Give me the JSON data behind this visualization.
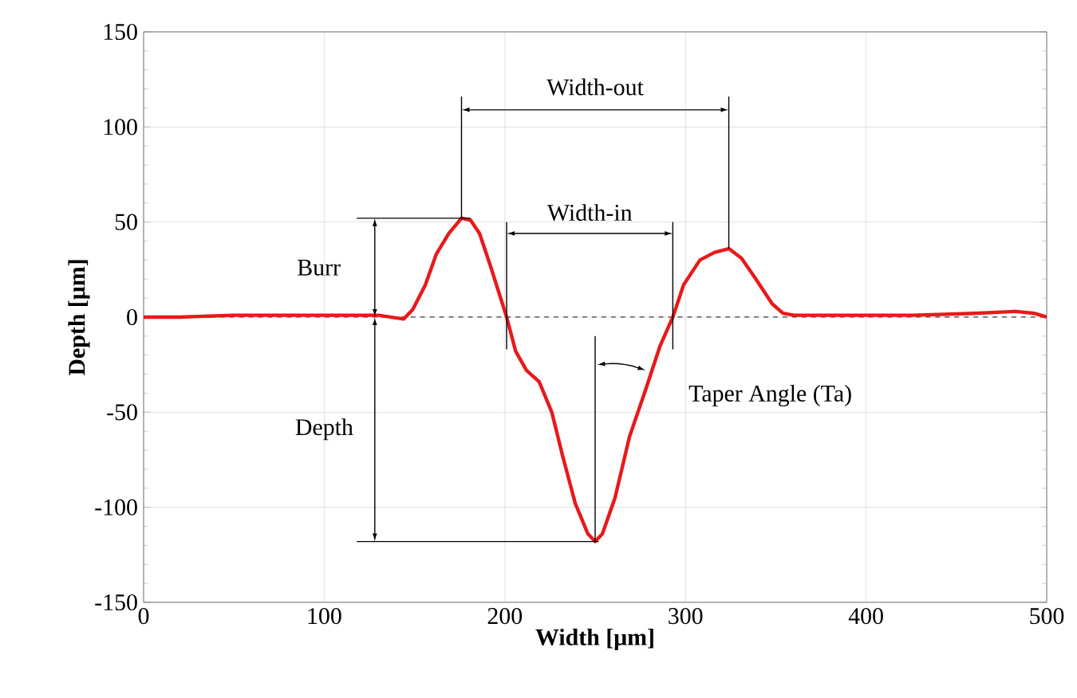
{
  "chart_data": {
    "type": "line",
    "xlabel": "Width [μm]",
    "ylabel": "Depth [μm]",
    "xlim": [
      0,
      500
    ],
    "xticks": [
      0,
      100,
      200,
      300,
      400,
      500
    ],
    "ylim": [
      -150,
      150
    ],
    "yticks": [
      -150,
      -100,
      -50,
      0,
      50,
      100,
      150
    ],
    "grid": true,
    "marker": "none",
    "line_style": "solid",
    "series": [
      {
        "color": "#e8191a",
        "x": [
          0,
          20,
          50,
          80,
          110,
          130,
          144,
          149,
          156,
          162,
          169,
          176,
          181,
          186,
          192,
          201,
          206,
          212,
          219,
          226,
          232,
          239,
          246,
          250,
          254,
          261,
          269,
          278,
          286,
          293,
          299,
          308,
          316,
          324,
          331,
          339,
          348,
          354,
          360,
          393,
          426,
          460,
          483,
          493,
          500
        ],
        "values": [
          0,
          0,
          1,
          1,
          1,
          1,
          -1,
          4,
          17,
          33,
          44,
          52,
          51,
          44,
          27,
          0,
          -18,
          -28,
          -34,
          -50,
          -73,
          -98,
          -114,
          -118,
          -114,
          -95,
          -63,
          -38,
          -15,
          0,
          17,
          30,
          34,
          36,
          31,
          20,
          7,
          2,
          1,
          1,
          1,
          2,
          3,
          2,
          0
        ]
      }
    ],
    "ref_lines": [
      {
        "axis": "y",
        "value": 0,
        "line_style": "dashed",
        "color": "#404040"
      }
    ],
    "annotations": [
      "Width-out",
      "Width-in",
      "Burr",
      "Depth",
      "Taper Angle (Ta)"
    ]
  }
}
